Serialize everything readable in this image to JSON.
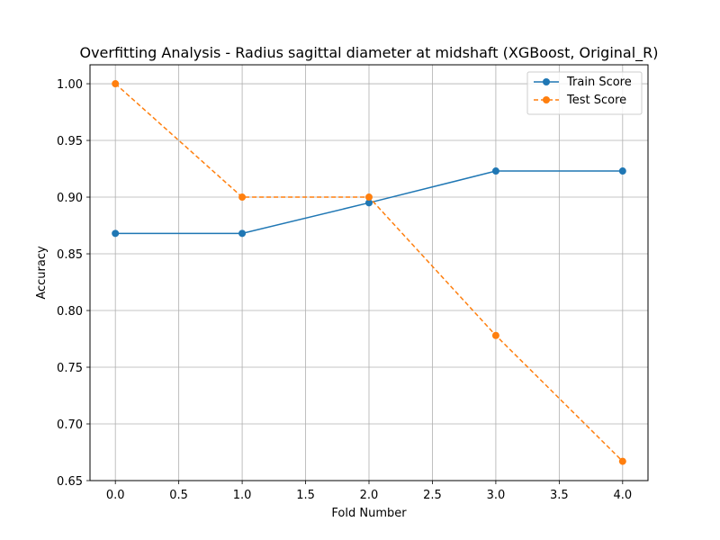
{
  "chart_data": {
    "type": "line",
    "title": "Overfitting Analysis - Radius sagittal diameter at midshaft (XGBoost, Original_R)",
    "xlabel": "Fold Number",
    "ylabel": "Accuracy",
    "xlim": [
      -0.2,
      4.2
    ],
    "ylim": [
      0.65,
      1.0167
    ],
    "x_ticks": [
      0.0,
      0.5,
      1.0,
      1.5,
      2.0,
      2.5,
      3.0,
      3.5,
      4.0
    ],
    "x_tick_labels": [
      "0.0",
      "0.5",
      "1.0",
      "1.5",
      "2.0",
      "2.5",
      "3.0",
      "3.5",
      "4.0"
    ],
    "y_ticks": [
      0.65,
      0.7,
      0.75,
      0.8,
      0.85,
      0.9,
      0.95,
      1.0
    ],
    "y_tick_labels": [
      "0.65",
      "0.70",
      "0.75",
      "0.80",
      "0.85",
      "0.90",
      "0.95",
      "1.00"
    ],
    "grid": true,
    "legend_position": "top-right",
    "x": [
      0,
      1,
      2,
      3,
      4
    ],
    "series": [
      {
        "name": "Train Score",
        "values": [
          0.868,
          0.868,
          0.895,
          0.923,
          0.923
        ],
        "color": "#1f77b4",
        "linestyle": "solid",
        "marker": "circle"
      },
      {
        "name": "Test Score",
        "values": [
          1.0,
          0.9,
          0.9,
          0.778,
          0.667
        ],
        "color": "#ff7f0e",
        "linestyle": "dashed",
        "marker": "circle"
      }
    ]
  }
}
